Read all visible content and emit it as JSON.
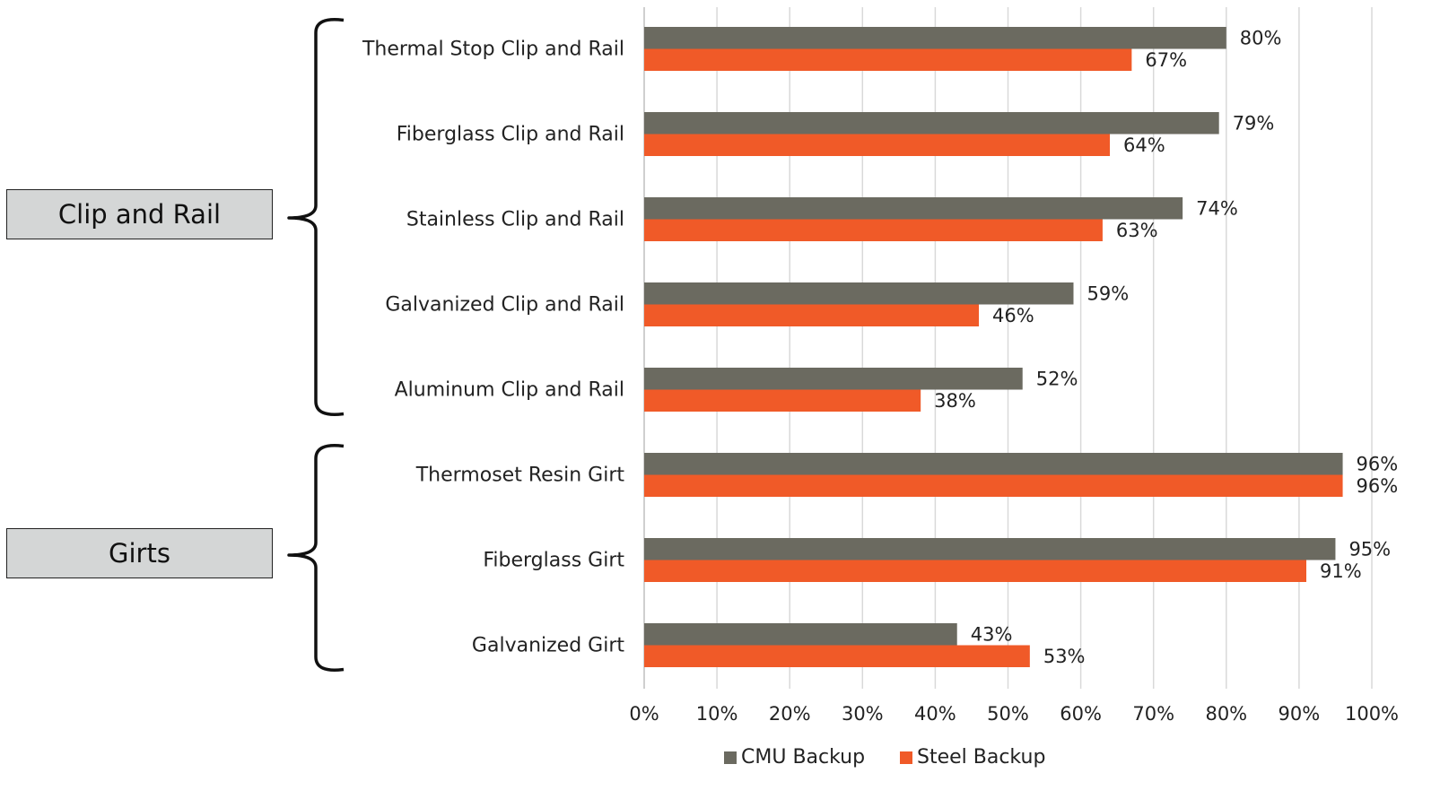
{
  "colors": {
    "cmu": "#6b6a60",
    "steel": "#f05a28",
    "grid": "#d9d9d9",
    "axis": "#bfbfbf",
    "box_fill": "#d4d6d6"
  },
  "groups": [
    {
      "label": "Clip and Rail",
      "first": 0,
      "last": 4
    },
    {
      "label": "Girts",
      "first": 5,
      "last": 7
    }
  ],
  "chart_data": {
    "type": "bar",
    "orientation": "horizontal",
    "categories": [
      "Thermal Stop Clip and Rail",
      "Fiberglass Clip and Rail",
      "Stainless Clip and Rail",
      "Galvanized Clip and Rail",
      "Aluminum Clip and Rail",
      "Thermoset Resin Girt",
      "Fiberglass Girt",
      "Galvanized Girt"
    ],
    "series": [
      {
        "name": "CMU Backup",
        "values": [
          80,
          79,
          74,
          59,
          52,
          96,
          95,
          43
        ]
      },
      {
        "name": "Steel Backup",
        "values": [
          67,
          64,
          63,
          46,
          38,
          96,
          91,
          53
        ]
      }
    ],
    "x_ticks": [
      "0%",
      "10%",
      "20%",
      "30%",
      "40%",
      "50%",
      "60%",
      "70%",
      "80%",
      "90%",
      "100%"
    ],
    "xlim": [
      0,
      100
    ],
    "value_suffix": "%",
    "grid": true,
    "legend_position": "bottom"
  }
}
